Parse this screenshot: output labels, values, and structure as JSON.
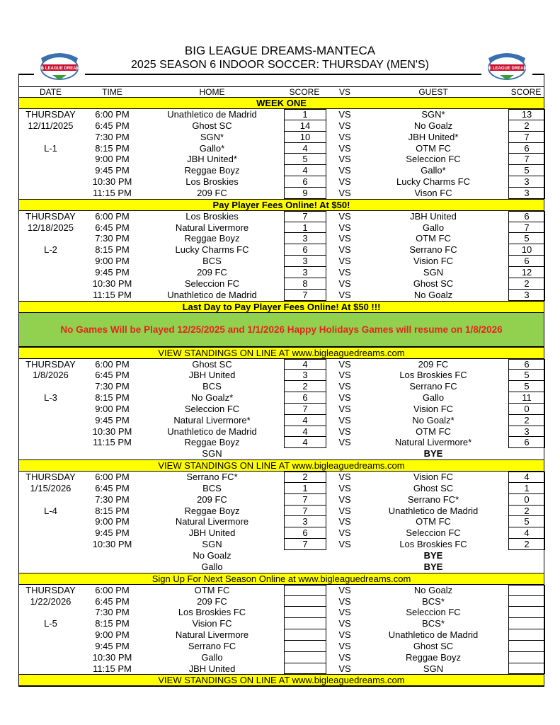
{
  "header": {
    "title": "BIG LEAGUE DREAMS-MANTECA",
    "subtitle": "2025 SEASON 6 INDOOR SOCCER: THURSDAY (MEN'S)",
    "logo_text": "BIG LEAGUE DREAMS"
  },
  "columns": {
    "date": "DATE",
    "time": "TIME",
    "home": "HOME",
    "home_score": "SCORE",
    "vs": "VS",
    "guest": "GUEST",
    "guest_score": "SCORE"
  },
  "colors": {
    "banner": "#ffff00",
    "notice_bg": "#92d050",
    "notice_text": "#e3261c"
  },
  "blocks": [
    {
      "type": "banner",
      "text": "WEEK ONE",
      "bold": true
    },
    {
      "type": "week",
      "day": "THURSDAY",
      "date": "12/11/2025",
      "label": "L-1",
      "games": [
        {
          "time": "6:00 PM",
          "home": "Unathletico de Madrid",
          "hs": "1",
          "vs": "VS",
          "guest": "SGN*",
          "gs": "13"
        },
        {
          "time": "6:45 PM",
          "home": "Ghost SC",
          "hs": "14",
          "vs": "VS",
          "guest": "No Goalz",
          "gs": "2"
        },
        {
          "time": "7:30 PM",
          "home": "SGN*",
          "hs": "10",
          "vs": "VS",
          "guest": "JBH United*",
          "gs": "7"
        },
        {
          "time": "8:15 PM",
          "home": "Gallo*",
          "hs": "4",
          "vs": "VS",
          "guest": "OTM FC",
          "gs": "6"
        },
        {
          "time": "9:00 PM",
          "home": "JBH United*",
          "hs": "5",
          "vs": "VS",
          "guest": "Seleccion FC",
          "gs": "7"
        },
        {
          "time": "9:45 PM",
          "home": "Reggae Boyz",
          "hs": "4",
          "vs": "VS",
          "guest": "Gallo*",
          "gs": "5"
        },
        {
          "time": "10:30 PM",
          "home": "Los Broskies",
          "hs": "6",
          "vs": "VS",
          "guest": "Lucky Charms FC",
          "gs": "3"
        },
        {
          "time": "11:15 PM",
          "home": "209 FC",
          "hs": "9",
          "vs": "VS",
          "guest": "Vison FC",
          "gs": "3"
        }
      ],
      "byes": []
    },
    {
      "type": "banner",
      "text": "Pay Player Fees Online! At $50!",
      "bold": true
    },
    {
      "type": "week",
      "day": "THURSDAY",
      "date": "12/18/2025",
      "label": "L-2",
      "games": [
        {
          "time": "6:00 PM",
          "home": "Los Broskies",
          "hs": "7",
          "vs": "VS",
          "guest": "JBH United",
          "gs": "6"
        },
        {
          "time": "6:45 PM",
          "home": "Natural Livermore",
          "hs": "1",
          "vs": "VS",
          "guest": "Gallo",
          "gs": "7"
        },
        {
          "time": "7:30 PM",
          "home": "Reggae Boyz",
          "hs": "3",
          "vs": "VS",
          "guest": "OTM FC",
          "gs": "5"
        },
        {
          "time": "8:15 PM",
          "home": "Lucky Charms FC",
          "hs": "6",
          "vs": "VS",
          "guest": "Serrano FC",
          "gs": "10"
        },
        {
          "time": "9:00 PM",
          "home": "BCS",
          "hs": "3",
          "vs": "VS",
          "guest": "Vision FC",
          "gs": "6"
        },
        {
          "time": "9:45 PM",
          "home": "209 FC",
          "hs": "3",
          "vs": "VS",
          "guest": "SGN",
          "gs": "12"
        },
        {
          "time": "10:30 PM",
          "home": "Seleccion FC",
          "hs": "8",
          "vs": "VS",
          "guest": "Ghost SC",
          "gs": "2"
        },
        {
          "time": "11:15 PM",
          "home": "Unathletico de Madrid",
          "hs": "7",
          "vs": "VS",
          "guest": "No Goalz",
          "gs": "3"
        }
      ],
      "byes": []
    },
    {
      "type": "banner",
      "text": "Last Day to Pay Player Fees Online! At $50 !!!",
      "bold": true
    },
    {
      "type": "notice",
      "text": "No Games Will be Played 12/25/2025 and 1/1/2026 Happy Holidays Games will resume on 1/8/2026"
    },
    {
      "type": "banner",
      "text": "VIEW STANDINGS ON LINE AT www.bigleaguedreams.com",
      "bold": false
    },
    {
      "type": "week",
      "day": "THURSDAY",
      "date": "1/8/2026",
      "label": "L-3",
      "games": [
        {
          "time": "6:00 PM",
          "home": "Ghost SC",
          "hs": "4",
          "vs": "VS",
          "guest": "209 FC",
          "gs": "6"
        },
        {
          "time": "6:45 PM",
          "home": "JBH United",
          "hs": "3",
          "vs": "VS",
          "guest": "Los Broskies FC",
          "gs": "5"
        },
        {
          "time": "7:30 PM",
          "home": "BCS",
          "hs": "2",
          "vs": "VS",
          "guest": "Serrano FC",
          "gs": "5"
        },
        {
          "time": "8:15 PM",
          "home": "No Goalz*",
          "hs": "6",
          "vs": "VS",
          "guest": "Gallo",
          "gs": "11"
        },
        {
          "time": "9:00 PM",
          "home": "Seleccion FC",
          "hs": "7",
          "vs": "VS",
          "guest": "Vision FC",
          "gs": "0"
        },
        {
          "time": "9:45 PM",
          "home": "Natural Livermore*",
          "hs": "4",
          "vs": "VS",
          "guest": "No Goalz*",
          "gs": "2"
        },
        {
          "time": "10:30 PM",
          "home": "Unathletico de Madrid",
          "hs": "4",
          "vs": "VS",
          "guest": "OTM FC",
          "gs": "3"
        },
        {
          "time": "11:15 PM",
          "home": "Reggae Boyz",
          "hs": "4",
          "vs": "VS",
          "guest": "Natural Livermore*",
          "gs": "6"
        }
      ],
      "byes": [
        {
          "team": "SGN",
          "text": "BYE"
        }
      ]
    },
    {
      "type": "banner",
      "text": "VIEW STANDINGS ON LINE AT www.bigleaguedreams.com",
      "bold": false
    },
    {
      "type": "week",
      "day": "THURSDAY",
      "date": "1/15/2026",
      "label": "L-4",
      "games": [
        {
          "time": "6:00 PM",
          "home": "Serrano FC*",
          "hs": "2",
          "vs": "VS",
          "guest": "Vision FC",
          "gs": "4"
        },
        {
          "time": "6:45 PM",
          "home": "BCS",
          "hs": "1",
          "vs": "VS",
          "guest": "Ghost SC",
          "gs": "1"
        },
        {
          "time": "7:30 PM",
          "home": "209 FC",
          "hs": "7",
          "vs": "VS",
          "guest": "Serrano FC*",
          "gs": "0"
        },
        {
          "time": "8:15 PM",
          "home": "Reggae Boyz",
          "hs": "7",
          "vs": "VS",
          "guest": "Unathletico de Madrid",
          "gs": "2"
        },
        {
          "time": "9:00 PM",
          "home": "Natural Livermore",
          "hs": "3",
          "vs": "VS",
          "guest": "OTM FC",
          "gs": "5"
        },
        {
          "time": "9:45 PM",
          "home": "JBH United",
          "hs": "6",
          "vs": "VS",
          "guest": "Seleccion FC",
          "gs": "4"
        },
        {
          "time": "10:30 PM",
          "home": "SGN",
          "hs": "7",
          "vs": "VS",
          "guest": "Los Broskies FC",
          "gs": "2"
        }
      ],
      "byes": [
        {
          "team": "No Goalz",
          "text": "BYE"
        },
        {
          "team": "Gallo",
          "text": "BYE"
        }
      ]
    },
    {
      "type": "banner",
      "text": "Sign Up For Next Season Online at www.bigleaguedreams.com",
      "bold": false
    },
    {
      "type": "week",
      "day": "THURSDAY",
      "date": "1/22/2026",
      "label": "L-5",
      "games": [
        {
          "time": "6:00 PM",
          "home": "OTM FC",
          "hs": "",
          "vs": "VS",
          "guest": "No Goalz",
          "gs": ""
        },
        {
          "time": "6:45 PM",
          "home": "209 FC",
          "hs": "",
          "vs": "VS",
          "guest": "BCS*",
          "gs": ""
        },
        {
          "time": "7:30 PM",
          "home": "Los Broskies FC",
          "hs": "",
          "vs": "VS",
          "guest": "Seleccion FC",
          "gs": ""
        },
        {
          "time": "8:15 PM",
          "home": "Vision FC",
          "hs": "",
          "vs": "VS",
          "guest": "BCS*",
          "gs": ""
        },
        {
          "time": "9:00 PM",
          "home": "Natural Livermore",
          "hs": "",
          "vs": "VS",
          "guest": "Unathletico de Madrid",
          "gs": ""
        },
        {
          "time": "9:45 PM",
          "home": "Serrano FC",
          "hs": "",
          "vs": "VS",
          "guest": "Ghost SC",
          "gs": ""
        },
        {
          "time": "10:30 PM",
          "home": "Gallo",
          "hs": "",
          "vs": "VS",
          "guest": "Reggae Boyz",
          "gs": ""
        },
        {
          "time": "11:15 PM",
          "home": "JBH United",
          "hs": "",
          "vs": "VS",
          "guest": "SGN",
          "gs": ""
        }
      ],
      "byes": []
    },
    {
      "type": "banner",
      "text": "VIEW STANDINGS ON LINE AT www.bigleaguedreams.com",
      "bold": false
    }
  ]
}
